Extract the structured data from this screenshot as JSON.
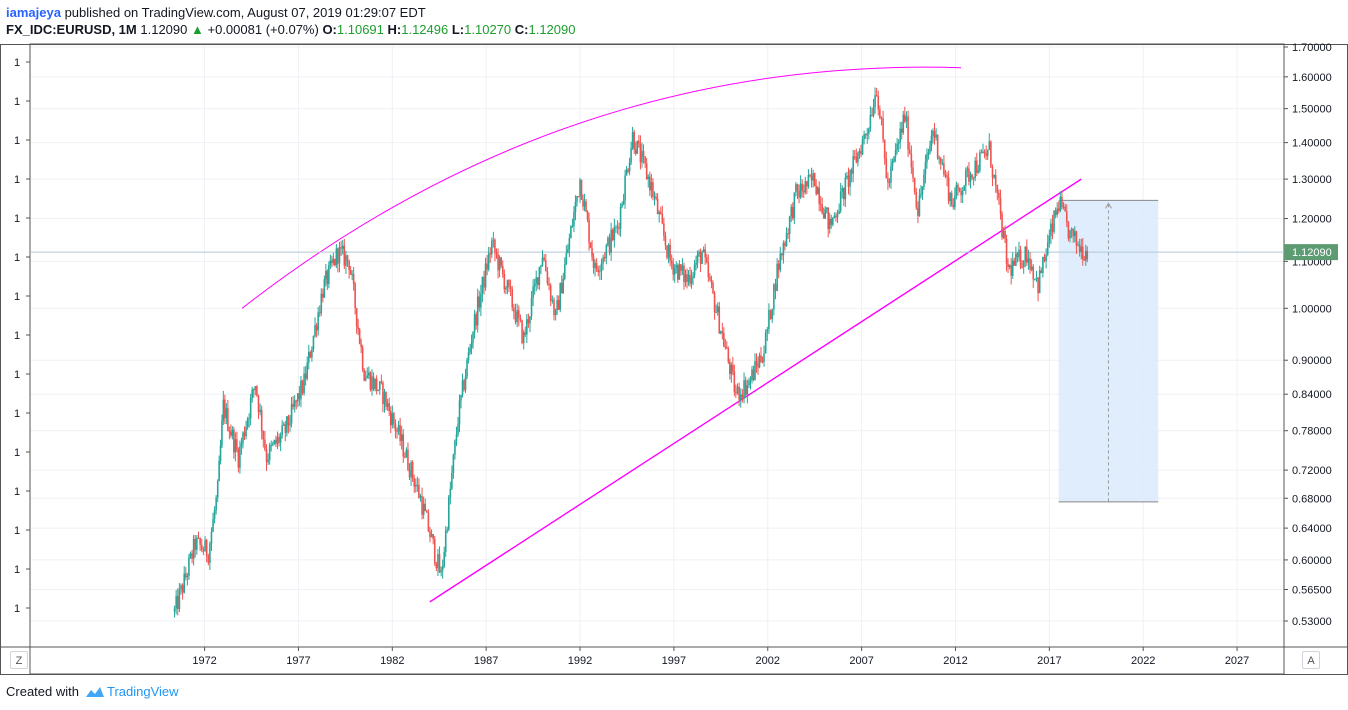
{
  "header": {
    "author": "iamajeya",
    "published_text": "published on TradingView.com, August 07, 2019 01:29:07 EDT",
    "symbol": "FX_IDC:EURUSD, 1M",
    "price": "1.12090",
    "change_arrow": "▲",
    "change": "+0.00081 (+0.07%)",
    "o_label": "O:",
    "o_value": "1.10691",
    "h_label": "H:",
    "h_value": "1.12496",
    "l_label": "L:",
    "l_value": "1.10270",
    "c_label": "C:",
    "c_value": "1.12090"
  },
  "footer": {
    "created_with": "Created with",
    "brand": "TradingView"
  },
  "buttons": {
    "zoom": "Z",
    "auto": "A"
  },
  "colors": {
    "bull": "#26a69a",
    "bear": "#ef5350",
    "trendline": "#ff00ff",
    "projection_fill": "#dbeafd",
    "price_label_bg": "#5d9c73",
    "grid": "#eef1f5"
  },
  "chart_data": {
    "type": "candlestick",
    "title": "FX_IDC:EURUSD, 1M",
    "xlabel": "",
    "ylabel": "",
    "y_scale": "log",
    "ylim": [
      0.5,
      1.72
    ],
    "x_ticks": [
      "1972",
      "1977",
      "1982",
      "1987",
      "1992",
      "1997",
      "2002",
      "2007",
      "2012",
      "2017",
      "2022",
      "2027"
    ],
    "y_ticks": [
      "1.70000",
      "1.60000",
      "1.50000",
      "1.40000",
      "1.30000",
      "1.20000",
      "1.10000",
      "1.00000",
      "0.90000",
      "0.84000",
      "0.78000",
      "0.72000",
      "0.68000",
      "0.64000",
      "0.60000",
      "0.56500",
      "0.53000"
    ],
    "left_axis_labels": [
      "1",
      "1",
      "1",
      "1",
      "1",
      "1",
      "1",
      "1",
      "1",
      "1",
      "1",
      "1",
      "1",
      "1",
      "1"
    ],
    "last_price_label": "1.12090",
    "series": [
      {
        "values": [
          [
            1970.9,
            0.54
          ],
          [
            1971.5,
            0.58
          ],
          [
            1972.0,
            0.62
          ],
          [
            1972.7,
            0.61
          ],
          [
            1973.2,
            0.69
          ],
          [
            1973.5,
            0.82
          ],
          [
            1974.3,
            0.74
          ],
          [
            1975.2,
            0.86
          ],
          [
            1975.8,
            0.74
          ],
          [
            1976.8,
            0.78
          ],
          [
            1977.8,
            0.86
          ],
          [
            1978.8,
            1.04
          ],
          [
            1979.6,
            1.12
          ],
          [
            1980.2,
            1.1
          ],
          [
            1981.0,
            0.88
          ],
          [
            1982.0,
            0.84
          ],
          [
            1983.0,
            0.76
          ],
          [
            1984.0,
            0.68
          ],
          [
            1985.1,
            0.58
          ],
          [
            1986.0,
            0.8
          ],
          [
            1986.8,
            0.96
          ],
          [
            1987.8,
            1.14
          ],
          [
            1988.8,
            1.02
          ],
          [
            1989.5,
            0.94
          ],
          [
            1990.5,
            1.12
          ],
          [
            1991.2,
            0.98
          ],
          [
            1992.5,
            1.3
          ],
          [
            1993.3,
            1.08
          ],
          [
            1994.5,
            1.18
          ],
          [
            1995.3,
            1.42
          ],
          [
            1996.3,
            1.28
          ],
          [
            1997.3,
            1.1
          ],
          [
            1998.2,
            1.06
          ],
          [
            1999.0,
            1.12
          ],
          [
            2000.0,
            0.96
          ],
          [
            2000.8,
            0.84
          ],
          [
            2001.5,
            0.86
          ],
          [
            2002.3,
            0.92
          ],
          [
            2003.0,
            1.08
          ],
          [
            2004.0,
            1.26
          ],
          [
            2005.0,
            1.3
          ],
          [
            2005.8,
            1.18
          ],
          [
            2006.8,
            1.3
          ],
          [
            2007.8,
            1.44
          ],
          [
            2008.3,
            1.57
          ],
          [
            2008.9,
            1.28
          ],
          [
            2009.8,
            1.48
          ],
          [
            2010.5,
            1.22
          ],
          [
            2011.3,
            1.44
          ],
          [
            2012.3,
            1.24
          ],
          [
            2013.3,
            1.32
          ],
          [
            2014.3,
            1.38
          ],
          [
            2014.9,
            1.2
          ],
          [
            2015.3,
            1.08
          ],
          [
            2016.3,
            1.12
          ],
          [
            2016.9,
            1.05
          ],
          [
            2017.5,
            1.15
          ],
          [
            2018.0,
            1.24
          ],
          [
            2018.6,
            1.16
          ],
          [
            2019.2,
            1.13
          ],
          [
            2019.6,
            1.12
          ]
        ]
      }
    ],
    "drawings": {
      "support_line": {
        "from": [
          1984.5,
          0.551
        ],
        "to": [
          2019.2,
          1.3
        ]
      },
      "resistance_arc": {
        "from": [
          1974.5,
          1.0
        ],
        "to": [
          2012.8,
          1.63
        ]
      },
      "projection_box": {
        "x_from": 2018.0,
        "x_to": 2023.3,
        "y_from": 0.675,
        "y_to": 1.245
      }
    }
  }
}
